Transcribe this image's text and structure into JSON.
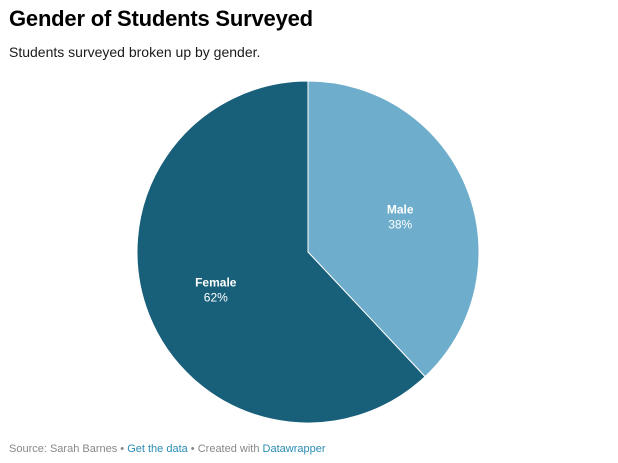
{
  "header": {
    "title": "Gender of Students Surveyed",
    "subtitle": "Students surveyed broken up by gender."
  },
  "chart_data": {
    "type": "pie",
    "slices": [
      {
        "label": "Male",
        "value": 38,
        "value_label": "38%",
        "color": "#6eadcb"
      },
      {
        "label": "Female",
        "value": 62,
        "value_label": "62%",
        "color": "#185f7a"
      }
    ],
    "start": "12 o'clock",
    "direction": "clockwise"
  },
  "footer": {
    "source_text": "Source: Sarah Barnes",
    "sep1": " • ",
    "get_data_link": "Get the data",
    "sep2": " • Created with ",
    "tool_link": "Datawrapper"
  }
}
